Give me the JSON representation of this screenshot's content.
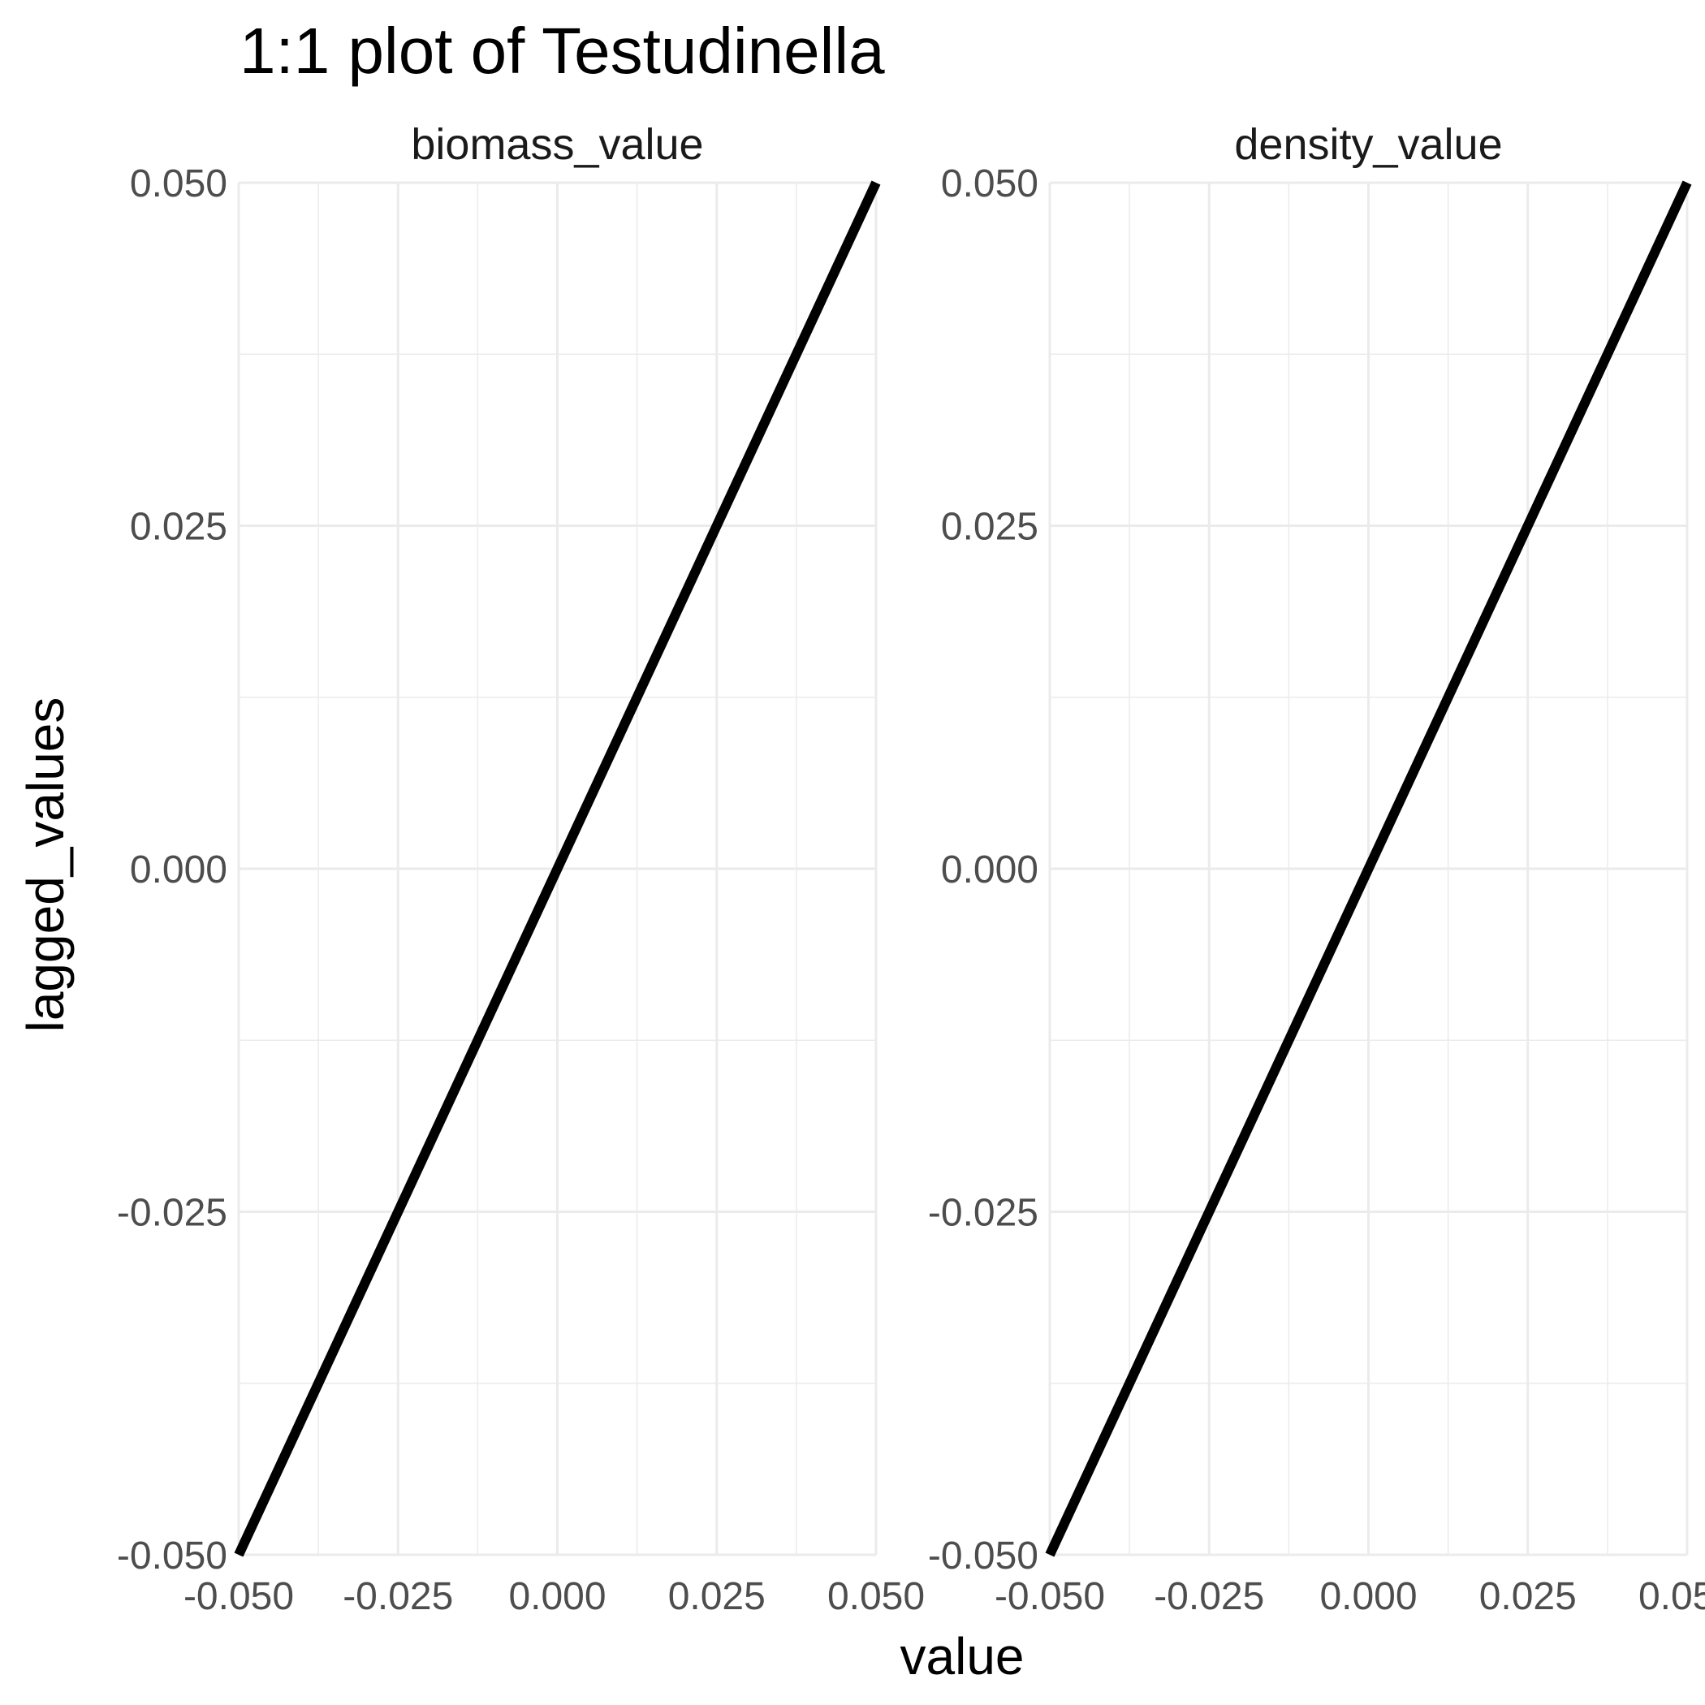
{
  "chart_data": {
    "type": "line",
    "title": "1:1 plot of Testudinella",
    "xlabel": "value",
    "ylabel": "lagged_values",
    "xlim": [
      -0.05,
      0.05
    ],
    "ylim": [
      -0.05,
      0.05
    ],
    "x_ticks": [
      "-0.050",
      "-0.025",
      "0.000",
      "0.025",
      "0.050"
    ],
    "y_ticks": [
      "-0.050",
      "-0.025",
      "0.000",
      "0.025",
      "0.050"
    ],
    "grid": true,
    "panels": [
      {
        "strip_label": "biomass_value",
        "x": [
          -0.05,
          0.05
        ],
        "y": [
          -0.05,
          0.05
        ]
      },
      {
        "strip_label": "density_value",
        "x": [
          -0.05,
          0.05
        ],
        "y": [
          -0.05,
          0.05
        ]
      }
    ]
  }
}
